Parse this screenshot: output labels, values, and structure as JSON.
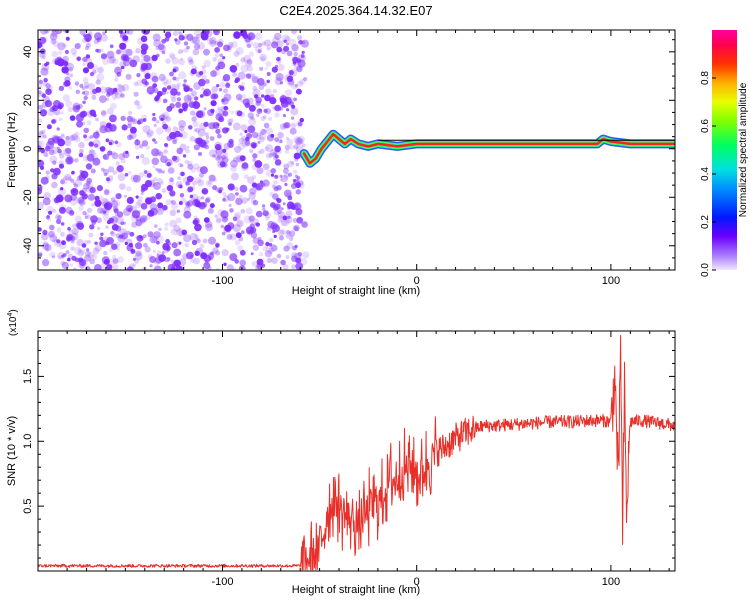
{
  "title": "C2E4.2025.364.14.32.E07",
  "colors": {
    "snr_line": "#e8302a",
    "scatter": "#7d2bff",
    "ridge_core": "#ff2020",
    "ridge_mid": "#33ff66",
    "ridge_edge": "#3355ff"
  },
  "chart_data": [
    {
      "type": "heatmap",
      "xlabel": "Height of straight line (km)",
      "ylabel": "Frequency (Hz)",
      "xlim": [
        -195,
        133
      ],
      "ylim": [
        -50,
        49
      ],
      "x_ticks": [
        "-100",
        "0",
        "100"
      ],
      "y_ticks": [
        "-40",
        "-20",
        "0",
        "20",
        "40"
      ],
      "grid": false,
      "noise_region_x": [
        -195,
        -57
      ],
      "ridge": {
        "x": [
          -58,
          -55,
          -52,
          -49,
          -46,
          -43,
          -40,
          -37,
          -34,
          -30,
          -25,
          -20,
          -10,
          0,
          20,
          40,
          60,
          80,
          93,
          96,
          100,
          110,
          133
        ],
        "y": [
          -2,
          -6,
          -4,
          0,
          3,
          6,
          4,
          2,
          4,
          2,
          1,
          2,
          1,
          2,
          2,
          2,
          2,
          2,
          2,
          4,
          3,
          2,
          2
        ]
      },
      "colorbar": {
        "label": "Normalized spectral amplitude",
        "range": [
          0,
          1
        ],
        "ticks": [
          "0.0",
          "0.2",
          "0.4",
          "0.6",
          "0.8"
        ]
      }
    },
    {
      "type": "line",
      "xlabel": "Height of straight line (km)",
      "ylabel": "SNR (10 * v/v)",
      "scale_label": "(x10",
      "scale_exponent": "4",
      "xlim": [
        -195,
        133
      ],
      "ylim": [
        0.0,
        1.85
      ],
      "x_ticks": [
        "-100",
        "0",
        "100"
      ],
      "y_ticks": [
        "0.5",
        "1.0",
        "1.5"
      ],
      "grid": false,
      "series": [
        {
          "x": [
            -195,
            -170,
            -140,
            -110,
            -80,
            -60,
            -50,
            -46,
            -42,
            -38,
            -34,
            -30,
            -26,
            -22,
            -18,
            -14,
            -10,
            -6,
            -2,
            2,
            6,
            10,
            14,
            18,
            22,
            26,
            30,
            35,
            40,
            50,
            60,
            70,
            80,
            90,
            96,
            100,
            102,
            104,
            105,
            106,
            107,
            108,
            110,
            115,
            120,
            125,
            133
          ],
          "y": [
            0.04,
            0.04,
            0.04,
            0.04,
            0.04,
            0.04,
            0.15,
            0.45,
            0.55,
            0.45,
            0.4,
            0.35,
            0.45,
            0.55,
            0.55,
            0.7,
            0.7,
            0.8,
            0.8,
            0.7,
            0.85,
            0.92,
            0.95,
            1.0,
            1.04,
            1.07,
            1.1,
            1.12,
            1.12,
            1.13,
            1.14,
            1.15,
            1.15,
            1.16,
            1.16,
            1.15,
            1.5,
            0.6,
            1.85,
            0.25,
            1.4,
            0.45,
            1.15,
            1.16,
            1.15,
            1.14,
            1.12
          ]
        }
      ]
    }
  ]
}
